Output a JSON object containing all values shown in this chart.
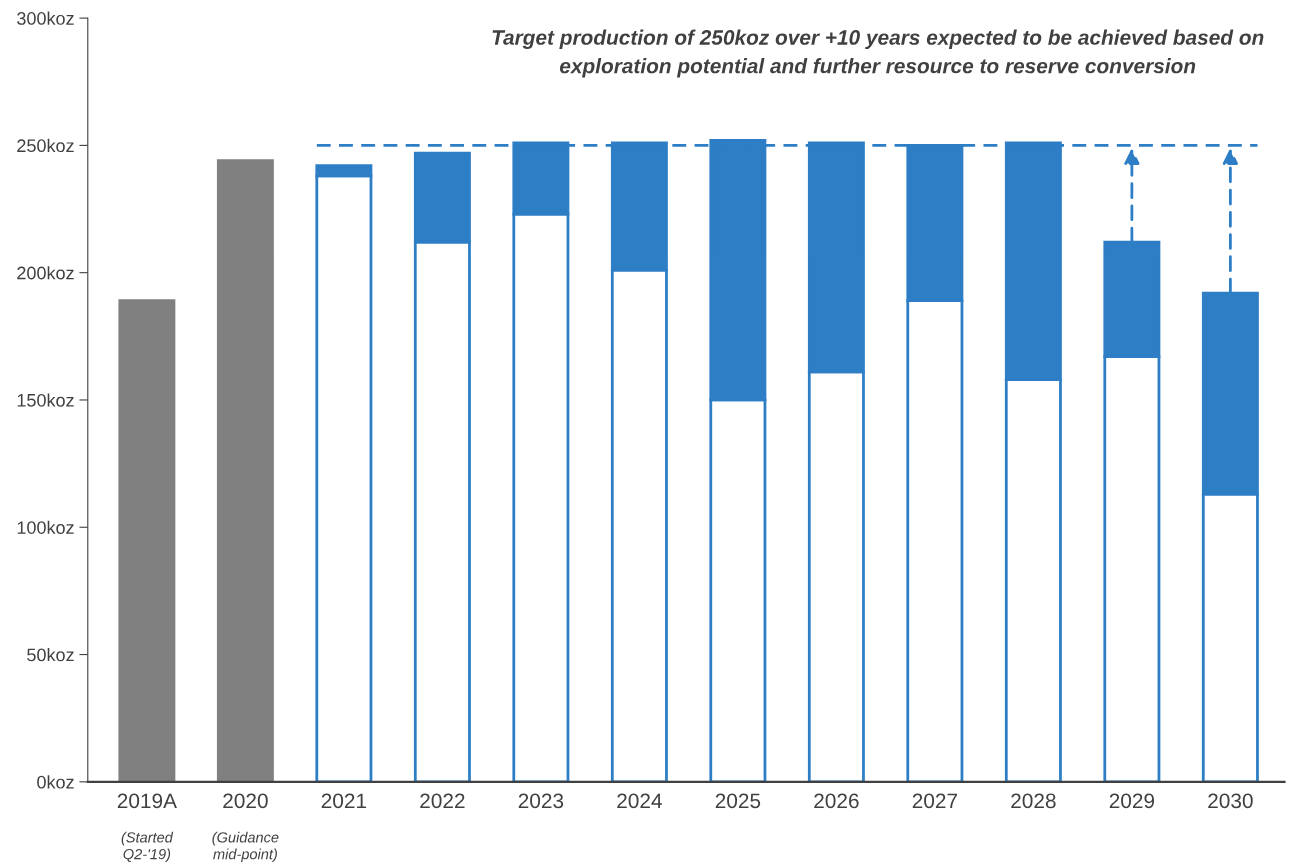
{
  "chart_data": {
    "type": "bar",
    "stacked": true,
    "title": "Target production of 250koz over +10 years expected to be achieved based on\nexploration potential and further resource to reserve conversion",
    "categories": [
      "2019A",
      "2020",
      "2021",
      "2022",
      "2023",
      "2024",
      "2025",
      "2026",
      "2027",
      "2028",
      "2029",
      "2030"
    ],
    "series": [
      {
        "color": "#808080",
        "values": [
          189,
          244,
          null,
          null,
          null,
          null,
          null,
          null,
          null,
          null,
          null,
          null
        ]
      },
      {
        "color": "#ffffff",
        "values": [
          null,
          null,
          238,
          212,
          223,
          201,
          150,
          161,
          189,
          158,
          167,
          113
        ]
      },
      {
        "color": "#2e7ec6",
        "values": [
          null,
          null,
          4,
          35,
          28,
          50,
          102,
          90,
          61,
          93,
          45,
          79
        ]
      }
    ],
    "ylim": [
      0,
      300
    ],
    "yticks": [
      {
        "value": 0,
        "label": "0koz"
      },
      {
        "value": 50,
        "label": "50koz"
      },
      {
        "value": 100,
        "label": "100koz"
      },
      {
        "value": 150,
        "label": "150koz"
      },
      {
        "value": 200,
        "label": "200koz"
      },
      {
        "value": 250,
        "label": "250koz"
      },
      {
        "value": 300,
        "label": "300koz"
      }
    ],
    "ref_lines": [
      {
        "axis": "y",
        "value": 250,
        "color": "#2e7ec6",
        "line_style": "dashed"
      }
    ],
    "annotations": [
      "(Started\nQ2-'19)",
      "(Guidance\nmid-point)"
    ],
    "grid": false,
    "legend": false
  }
}
